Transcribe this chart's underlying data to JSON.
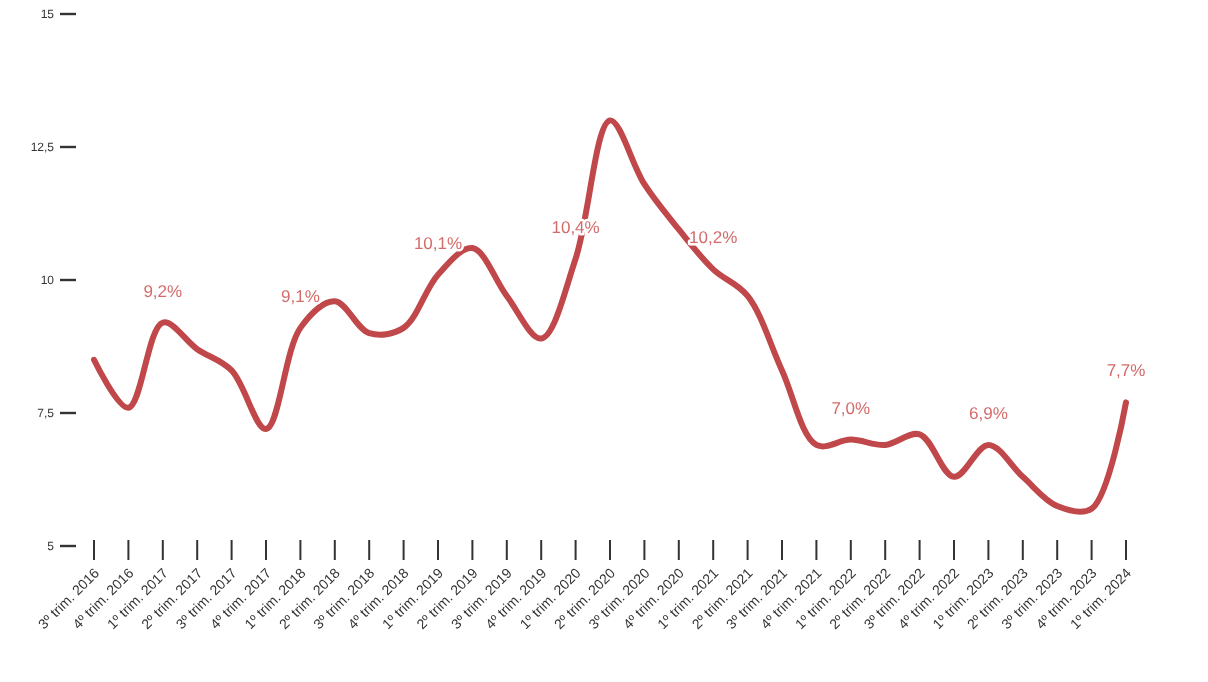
{
  "chart_data": {
    "type": "line",
    "categories": [
      "3º trim. 2016",
      "4º trim. 2016",
      "1º trim. 2017",
      "2º trim. 2017",
      "3º trim. 2017",
      "4º trim. 2017",
      "1º trim. 2018",
      "2º trim. 2018",
      "3º trim. 2018",
      "4º trim. 2018",
      "1º trim. 2019",
      "2º trim. 2019",
      "3º trim. 2019",
      "4º trim. 2019",
      "1º trim. 2020",
      "2º trim. 2020",
      "3º trim. 2020",
      "4º trim. 2020",
      "1º trim. 2021",
      "2º trim. 2021",
      "3º trim. 2021",
      "4º trim. 2021",
      "1º trim. 2022",
      "2º trim. 2022",
      "3º trim. 2022",
      "4º trim. 2022",
      "1º trim. 2023",
      "2º trim. 2023",
      "3º trim. 2023",
      "4º trim. 2023",
      "1º trim. 2024"
    ],
    "series": [
      {
        "color": "#c0474a",
        "values": [
          8.5,
          7.6,
          9.2,
          8.7,
          8.3,
          7.2,
          9.1,
          9.6,
          9.0,
          9.1,
          10.1,
          10.6,
          9.7,
          8.9,
          10.4,
          13.0,
          11.8,
          10.95,
          10.2,
          9.7,
          8.3,
          6.9,
          7.0,
          6.9,
          7.1,
          6.3,
          6.9,
          6.3,
          5.75,
          5.7,
          7.7
        ],
        "value_labels": [
          null,
          null,
          "9,2%",
          null,
          null,
          null,
          "9,1%",
          null,
          null,
          null,
          "10,1%",
          null,
          null,
          null,
          "10,4%",
          null,
          null,
          null,
          "10,2%",
          null,
          null,
          null,
          "7,0%",
          null,
          null,
          null,
          "6,9%",
          null,
          null,
          null,
          "7,7%"
        ]
      }
    ],
    "ylim": [
      5,
      15
    ],
    "yticks": [
      5,
      {
        "value": 7.5,
        "label": "7,5"
      },
      10,
      {
        "value": 12.5,
        "label": "12,5"
      },
      15
    ],
    "grid": false,
    "marker": "none",
    "line_style": "solid"
  }
}
